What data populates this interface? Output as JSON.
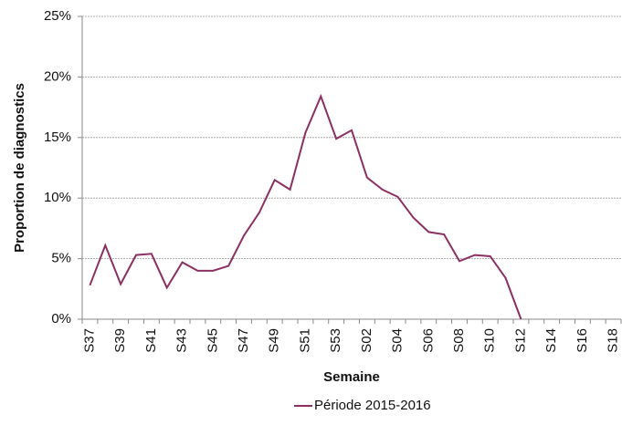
{
  "chart_data": {
    "type": "line",
    "y_label": "Proportion de diagnostics",
    "x_label": "Semaine",
    "categories": [
      "S37",
      null,
      "S39",
      null,
      "S41",
      null,
      "S43",
      null,
      "S45",
      null,
      "S47",
      null,
      "S49",
      null,
      "S51",
      null,
      "S53",
      null,
      "S02",
      null,
      "S04",
      null,
      "S06",
      null,
      "S08",
      null,
      "S10",
      null,
      "S12",
      null,
      "S14",
      null,
      "S16",
      null,
      "S18"
    ],
    "series": [
      {
        "name": "Période 2015-2016",
        "color": "#8c2f62",
        "values": [
          2.8,
          6.1,
          2.9,
          5.3,
          5.4,
          2.6,
          4.7,
          4.0,
          4.0,
          4.4,
          6.9,
          8.8,
          11.5,
          10.7,
          15.4,
          18.4,
          14.9,
          15.6,
          11.7,
          10.7,
          10.1,
          8.4,
          7.2,
          7.0,
          4.8,
          5.3,
          5.2,
          3.4,
          0.0,
          null,
          null,
          null,
          null,
          null,
          null
        ]
      }
    ],
    "ylim": [
      0,
      25
    ],
    "yticks": [
      {
        "value": 0,
        "label": "0%"
      },
      {
        "value": 5,
        "label": "5%"
      },
      {
        "value": 10,
        "label": "10%"
      },
      {
        "value": 15,
        "label": "15%"
      },
      {
        "value": 20,
        "label": "20%"
      },
      {
        "value": 25,
        "label": "25%"
      }
    ],
    "grid": true,
    "legend": "bottom"
  }
}
